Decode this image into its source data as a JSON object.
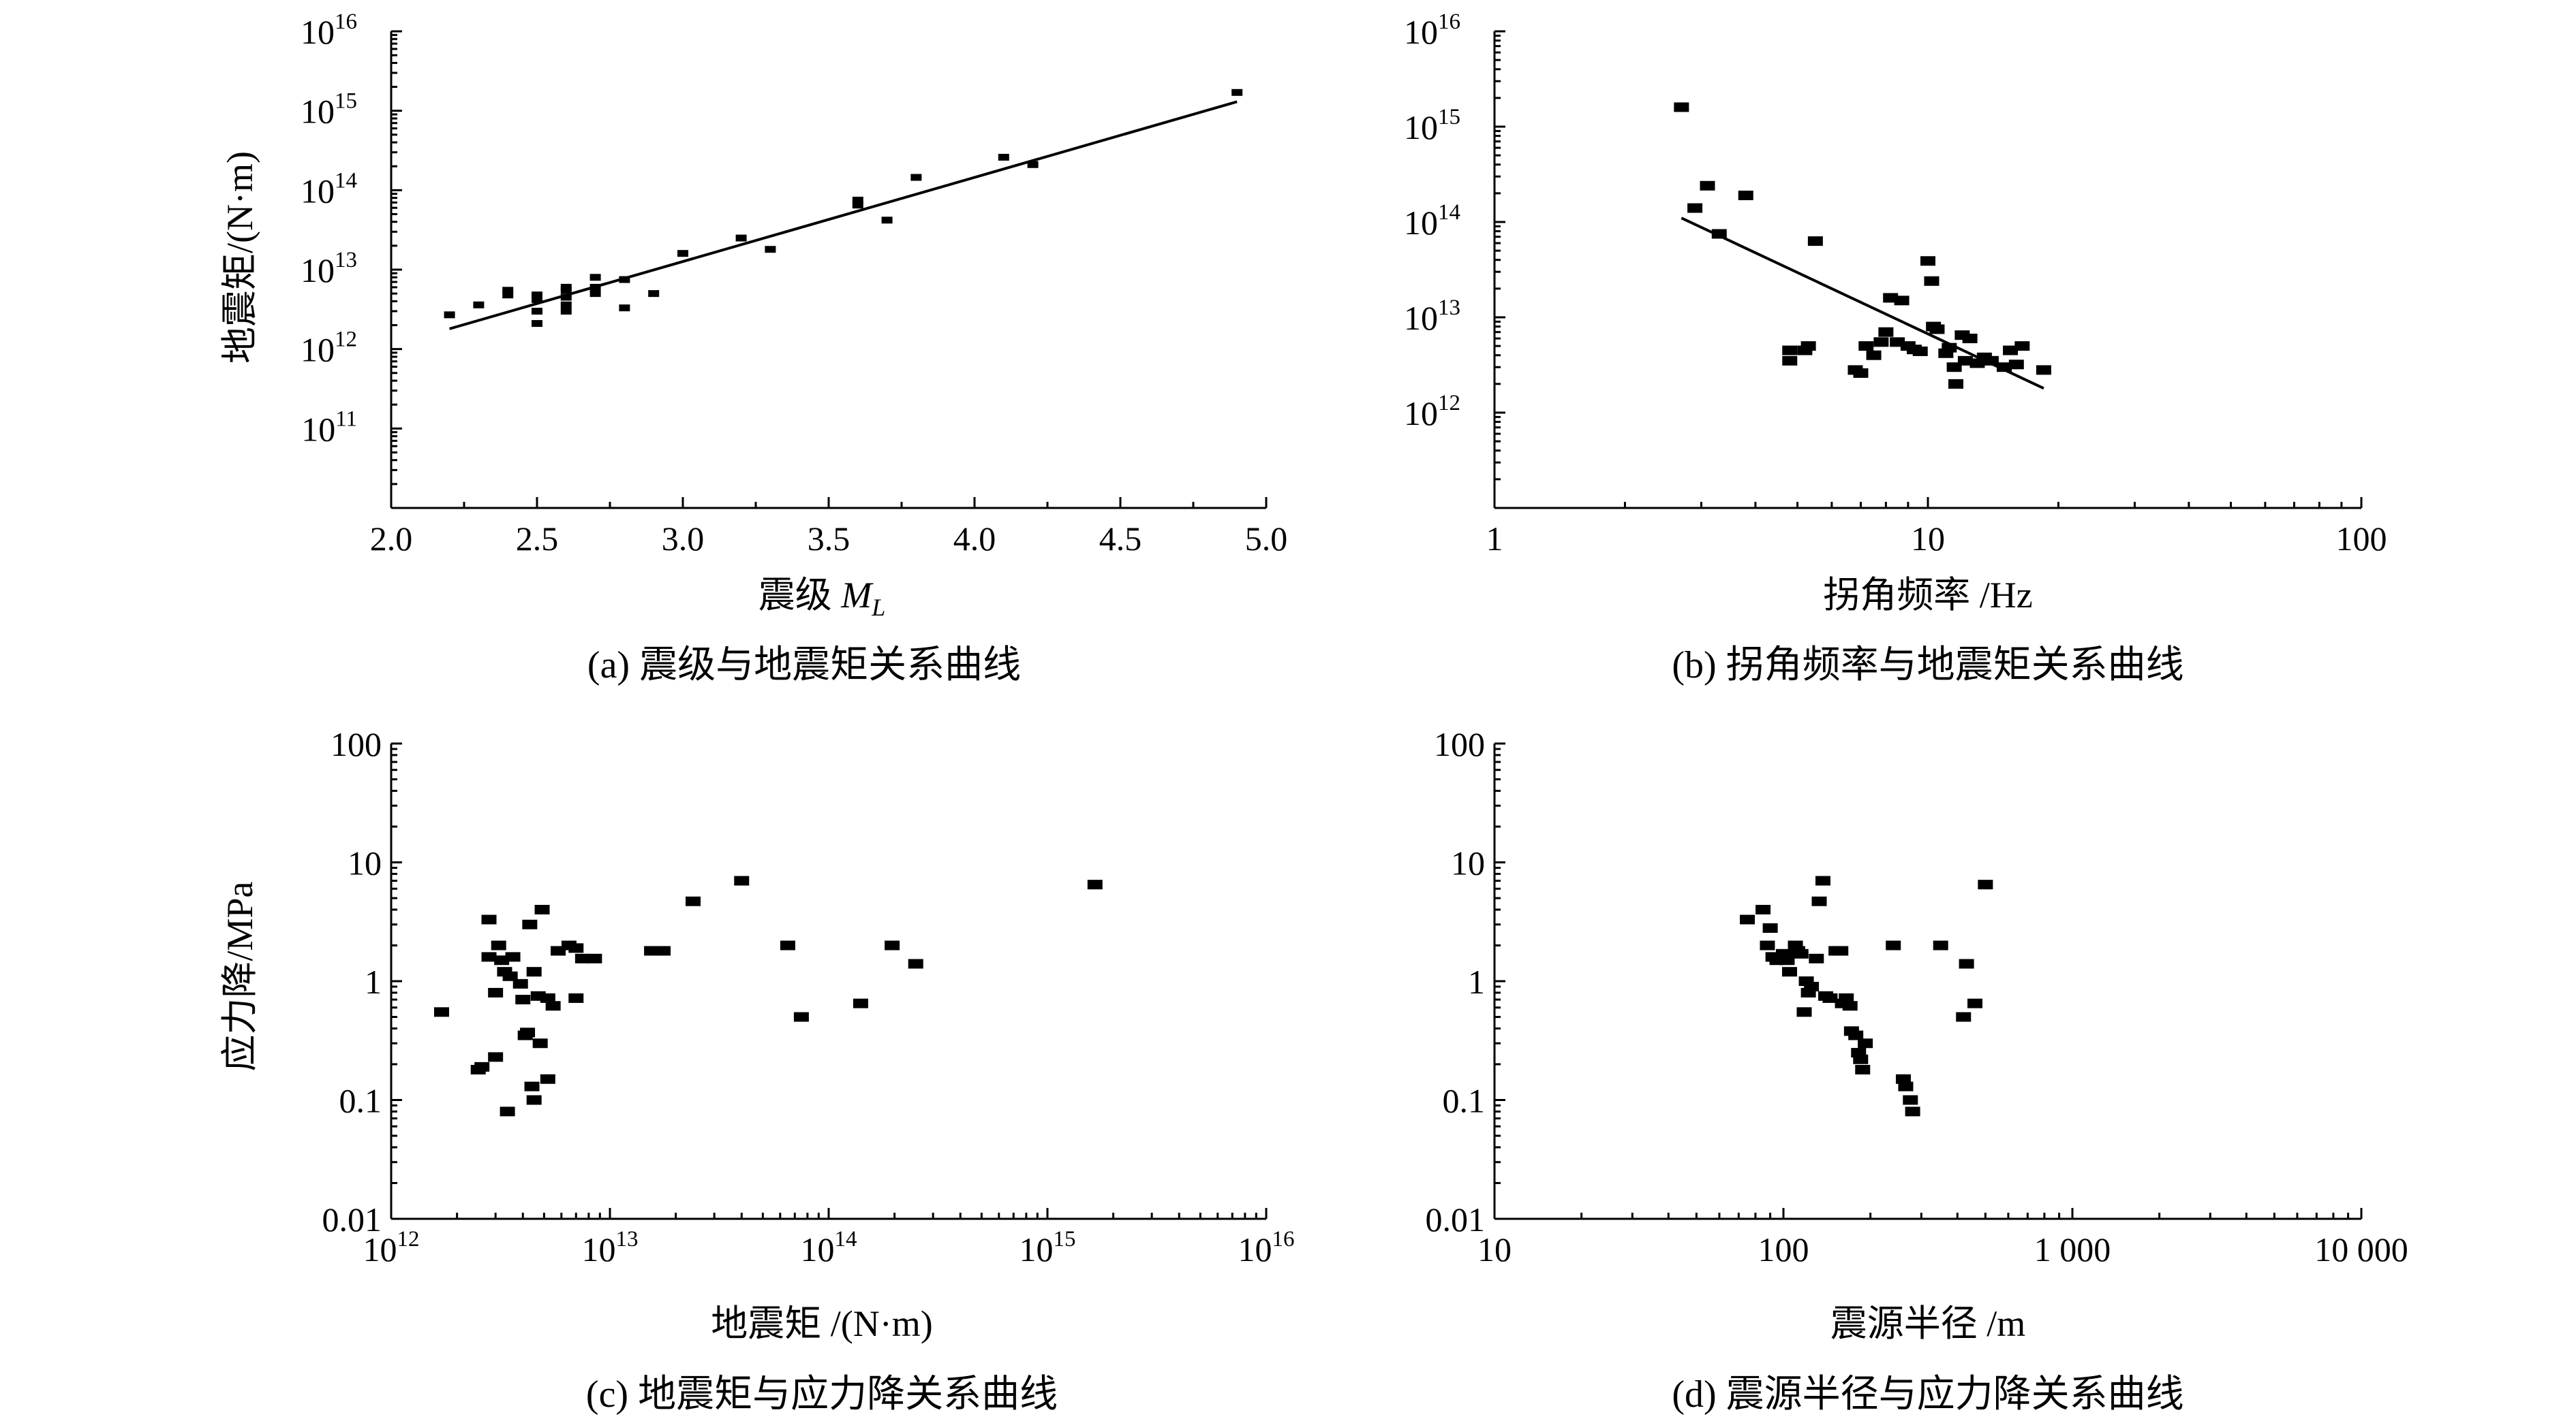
{
  "chart_data": [
    {
      "type": "scatter",
      "caption": "(a) 震级与地震矩关系曲线",
      "xlabel": "震级 M_L",
      "xlabel_main": "震级 ",
      "xlabel_var": "M",
      "xlabel_sub": "L",
      "ylabel": "地震矩/(N·m)",
      "xscale": "linear",
      "yscale": "log",
      "xlim": [
        2.0,
        5.0
      ],
      "ylim": [
        10000000000.0,
        1e+16
      ],
      "xticks": [
        "2.0",
        "2.5",
        "3.0",
        "3.5",
        "4.0",
        "4.5",
        "5.0"
      ],
      "yticks": [
        "10^11",
        "10^12",
        "10^13",
        "10^14",
        "10^15",
        "10^16"
      ],
      "points": [
        [
          2.2,
          2700000000000.0
        ],
        [
          2.3,
          3600000000000.0
        ],
        [
          2.4,
          4800000000000.0
        ],
        [
          2.4,
          5500000000000.0
        ],
        [
          2.5,
          2100000000000.0
        ],
        [
          2.5,
          3000000000000.0
        ],
        [
          2.5,
          4200000000000.0
        ],
        [
          2.5,
          4800000000000.0
        ],
        [
          2.6,
          3000000000000.0
        ],
        [
          2.6,
          3600000000000.0
        ],
        [
          2.6,
          4500000000000.0
        ],
        [
          2.6,
          5500000000000.0
        ],
        [
          2.6,
          6000000000000.0
        ],
        [
          2.7,
          5000000000000.0
        ],
        [
          2.7,
          6000000000000.0
        ],
        [
          2.7,
          8000000000000.0
        ],
        [
          2.8,
          3300000000000.0
        ],
        [
          2.8,
          7500000000000.0
        ],
        [
          2.9,
          5000000000000.0
        ],
        [
          3.0,
          16000000000000.0
        ],
        [
          3.2,
          25000000000000.0
        ],
        [
          3.3,
          18000000000000.0
        ],
        [
          3.6,
          65000000000000.0
        ],
        [
          3.6,
          75000000000000.0
        ],
        [
          3.7,
          42000000000000.0
        ],
        [
          3.8,
          145000000000000.0
        ],
        [
          4.1,
          260000000000000.0
        ],
        [
          4.2,
          210000000000000.0
        ],
        [
          4.9,
          1700000000000000.0
        ]
      ],
      "fit_line": [
        [
          2.2,
          1800000000000.0
        ],
        [
          4.9,
          1300000000000000.0
        ]
      ]
    },
    {
      "type": "scatter",
      "caption": "(b) 拐角频率与地震矩关系曲线",
      "xlabel": "拐角频率 /Hz",
      "ylabel": "",
      "xscale": "log",
      "yscale": "log",
      "xlim": [
        1,
        100
      ],
      "ylim": [
        100000000000.0,
        1e+16
      ],
      "xticks": [
        "1",
        "10",
        "100"
      ],
      "yticks": [
        "10^12",
        "10^13",
        "10^14",
        "10^15",
        "10^16"
      ],
      "points": [
        [
          2.7,
          1600000000000000.0
        ],
        [
          2.9,
          140000000000000.0
        ],
        [
          3.1,
          240000000000000.0
        ],
        [
          3.3,
          75000000000000.0
        ],
        [
          3.8,
          190000000000000.0
        ],
        [
          4.8,
          3500000000000.0
        ],
        [
          4.8,
          4500000000000.0
        ],
        [
          5.2,
          4500000000000.0
        ],
        [
          5.3,
          5000000000000.0
        ],
        [
          5.5,
          63000000000000.0
        ],
        [
          6.8,
          2800000000000.0
        ],
        [
          7.0,
          2600000000000.0
        ],
        [
          7.2,
          5000000000000.0
        ],
        [
          7.5,
          4000000000000.0
        ],
        [
          7.8,
          5500000000000.0
        ],
        [
          8.0,
          7000000000000.0
        ],
        [
          8.2,
          16000000000000.0
        ],
        [
          8.5,
          5500000000000.0
        ],
        [
          8.7,
          15000000000000.0
        ],
        [
          9.0,
          5000000000000.0
        ],
        [
          9.3,
          4600000000000.0
        ],
        [
          9.6,
          4400000000000.0
        ],
        [
          10.0,
          39000000000000.0
        ],
        [
          10.2,
          24000000000000.0
        ],
        [
          10.3,
          8000000000000.0
        ],
        [
          10.5,
          7500000000000.0
        ],
        [
          11.0,
          4200000000000.0
        ],
        [
          11.2,
          4800000000000.0
        ],
        [
          11.5,
          3000000000000.0
        ],
        [
          11.6,
          2000000000000.0
        ],
        [
          12.0,
          6500000000000.0
        ],
        [
          12.2,
          3500000000000.0
        ],
        [
          12.5,
          6000000000000.0
        ],
        [
          13.0,
          3300000000000.0
        ],
        [
          13.5,
          3800000000000.0
        ],
        [
          14.0,
          3500000000000.0
        ],
        [
          15.0,
          3000000000000.0
        ],
        [
          15.5,
          4500000000000.0
        ],
        [
          16.0,
          3200000000000.0
        ],
        [
          16.5,
          5000000000000.0
        ],
        [
          18.5,
          2800000000000.0
        ]
      ],
      "fit_line": [
        [
          2.7,
          110000000000000.0
        ],
        [
          18.5,
          1800000000000.0
        ]
      ]
    },
    {
      "type": "scatter",
      "caption": "(c) 地震矩与应力降关系曲线",
      "xlabel": "地震矩 /(N·m)",
      "ylabel": "应力降/MPa",
      "xscale": "log",
      "yscale": "log",
      "xlim": [
        1000000000000.0,
        1e+16
      ],
      "ylim": [
        0.01,
        100
      ],
      "xticks": [
        "10^12",
        "10^13",
        "10^14",
        "10^15",
        "10^16"
      ],
      "yticks": [
        "0.01",
        "0.1",
        "1",
        "10",
        "100"
      ],
      "points": [
        [
          1700000000000.0,
          0.55
        ],
        [
          2500000000000.0,
          0.18
        ],
        [
          2600000000000.0,
          0.19
        ],
        [
          2800000000000.0,
          3.3
        ],
        [
          2800000000000.0,
          1.6
        ],
        [
          3000000000000.0,
          0.8
        ],
        [
          3000000000000.0,
          0.23
        ],
        [
          3100000000000.0,
          2.0
        ],
        [
          3200000000000.0,
          1.5
        ],
        [
          3300000000000.0,
          1.2
        ],
        [
          3400000000000.0,
          0.08
        ],
        [
          3500000000000.0,
          1.1
        ],
        [
          3600000000000.0,
          1.6
        ],
        [
          3900000000000.0,
          0.95
        ],
        [
          4000000000000.0,
          0.7
        ],
        [
          4100000000000.0,
          0.35
        ],
        [
          4200000000000.0,
          0.37
        ],
        [
          4300000000000.0,
          3.0
        ],
        [
          4400000000000.0,
          0.13
        ],
        [
          4500000000000.0,
          0.1
        ],
        [
          4500000000000.0,
          1.2
        ],
        [
          4700000000000.0,
          0.75
        ],
        [
          4800000000000.0,
          0.3
        ],
        [
          4900000000000.0,
          4.0
        ],
        [
          5200000000000.0,
          0.72
        ],
        [
          5200000000000.0,
          0.15
        ],
        [
          5500000000000.0,
          0.62
        ],
        [
          5800000000000.0,
          1.8
        ],
        [
          6500000000000.0,
          2.0
        ],
        [
          7000000000000.0,
          0.72
        ],
        [
          7000000000000.0,
          1.9
        ],
        [
          7500000000000.0,
          1.55
        ],
        [
          8500000000000.0,
          1.55
        ],
        [
          15500000000000.0,
          1.8
        ],
        [
          17500000000000.0,
          1.8
        ],
        [
          24000000000000.0,
          4.7
        ],
        [
          40000000000000.0,
          7.0
        ],
        [
          65000000000000.0,
          2.0
        ],
        [
          75000000000000.0,
          0.5
        ],
        [
          140000000000000.0,
          0.65
        ],
        [
          195000000000000.0,
          2.0
        ],
        [
          250000000000000.0,
          1.4
        ],
        [
          1650000000000000.0,
          6.5
        ]
      ]
    },
    {
      "type": "scatter",
      "caption": "(d) 震源半径与应力降关系曲线",
      "xlabel": "震源半径 /m",
      "ylabel": "",
      "xscale": "log",
      "yscale": "log",
      "xlim": [
        10,
        10000
      ],
      "ylim": [
        0.01,
        100
      ],
      "xticks": [
        "10",
        "100",
        "1 000",
        "10 000"
      ],
      "yticks": [
        "0.01",
        "0.1",
        "1",
        "10",
        "100"
      ],
      "points": [
        [
          75,
          3.3
        ],
        [
          85,
          4.0
        ],
        [
          88,
          2.0
        ],
        [
          90,
          2.8
        ],
        [
          92,
          1.6
        ],
        [
          95,
          1.5
        ],
        [
          100,
          1.7
        ],
        [
          103,
          1.5
        ],
        [
          105,
          1.2
        ],
        [
          110,
          2.0
        ],
        [
          112,
          1.8
        ],
        [
          115,
          1.7
        ],
        [
          118,
          0.55
        ],
        [
          120,
          1.0
        ],
        [
          122,
          0.8
        ],
        [
          125,
          0.9
        ],
        [
          130,
          1.55
        ],
        [
          133,
          4.7
        ],
        [
          137,
          7.0
        ],
        [
          140,
          0.75
        ],
        [
          145,
          0.72
        ],
        [
          152,
          1.8
        ],
        [
          158,
          1.8
        ],
        [
          160,
          0.65
        ],
        [
          165,
          0.72
        ],
        [
          170,
          0.62
        ],
        [
          172,
          0.38
        ],
        [
          178,
          0.35
        ],
        [
          182,
          0.25
        ],
        [
          185,
          0.22
        ],
        [
          188,
          0.18
        ],
        [
          192,
          0.3
        ],
        [
          240,
          2.0
        ],
        [
          260,
          0.15
        ],
        [
          265,
          0.13
        ],
        [
          275,
          0.1
        ],
        [
          280,
          0.08
        ],
        [
          350,
          2.0
        ],
        [
          420,
          0.5
        ],
        [
          430,
          1.4
        ],
        [
          460,
          0.65
        ],
        [
          500,
          6.5
        ]
      ]
    }
  ]
}
